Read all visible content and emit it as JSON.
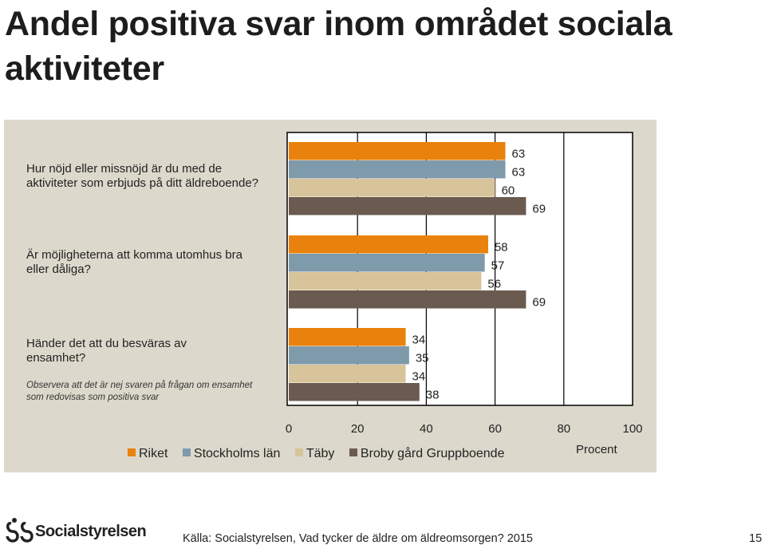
{
  "slide": {
    "title": "Andel positiva svar inom området sociala aktiviteter",
    "footer": "Källa: Socialstyrelsen, Vad tycker de äldre om äldreomsorgen? 2015",
    "page_number": "15",
    "logo_text": "Socialstyrelsen"
  },
  "questions": [
    {
      "text": "Hur nöjd eller missnöjd är du med de aktiviteter som erbjuds på ditt äldreboende?"
    },
    {
      "text": "Är möjligheterna att komma utomhus bra eller dåliga?"
    },
    {
      "text": "Händer det att du besväras av ensamhet?",
      "note": "Observera att det är nej svaren på frågan om ensamhet som redovisas som positiva svar"
    }
  ],
  "colors": {
    "Riket": "#e8820c",
    "Stockholms län": "#7f9aab",
    "Täby": "#d8c49a",
    "Broby gård Gruppboende": "#6a5a4f",
    "panel": "#dcd9cc"
  },
  "chart_data": {
    "type": "bar",
    "orientation": "horizontal",
    "categories": [
      "Hur nöjd eller missnöjd är du med de aktiviteter som erbjuds på ditt äldreboende?",
      "Är möjligheterna att komma utomhus bra eller dåliga?",
      "Händer det att du besväras av ensamhet?"
    ],
    "series": [
      {
        "name": "Riket",
        "values": [
          63,
          58,
          34
        ]
      },
      {
        "name": "Stockholms län",
        "values": [
          63,
          57,
          35
        ]
      },
      {
        "name": "Täby",
        "values": [
          60,
          56,
          34
        ]
      },
      {
        "name": "Broby gård Gruppboende",
        "values": [
          69,
          69,
          38
        ]
      }
    ],
    "xlim": [
      0,
      100
    ],
    "xticks": [
      "0",
      "20",
      "40",
      "60",
      "80",
      "100"
    ],
    "xlabel": "Procent",
    "grid": true,
    "legend_position": "bottom"
  }
}
